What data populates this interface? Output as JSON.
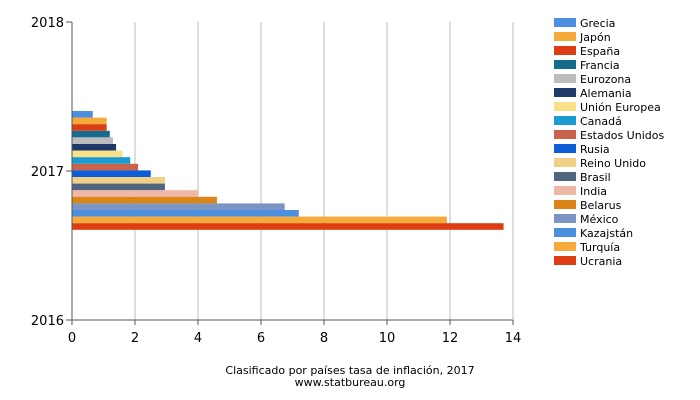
{
  "chart_data": {
    "type": "bar",
    "orientation": "horizontal",
    "title": "Clasificado por países tasa de inflación, 2017",
    "source": "www.statbureau.org",
    "xlabel": "",
    "ylabel": "",
    "xlim": [
      0,
      14
    ],
    "x_ticks": [
      "0",
      "2",
      "4",
      "6",
      "8",
      "10",
      "12",
      "14"
    ],
    "y_ticks": [
      "2018",
      "2017",
      "2016"
    ],
    "grid": true,
    "legend_position": "right",
    "category": "2017",
    "series": [
      {
        "name": "Grecia",
        "value": 0.66,
        "color": "#4a8fe0"
      },
      {
        "name": "Japón",
        "value": 1.1,
        "color": "#f5aa3a"
      },
      {
        "name": "España",
        "value": 1.1,
        "color": "#dc3d12"
      },
      {
        "name": "Francia",
        "value": 1.2,
        "color": "#176b8c"
      },
      {
        "name": "Eurozona",
        "value": 1.3,
        "color": "#bcbcbc"
      },
      {
        "name": "Alemania",
        "value": 1.4,
        "color": "#1f3a68"
      },
      {
        "name": "Unión Europea",
        "value": 1.6,
        "color": "#fbe08a"
      },
      {
        "name": "Canadá",
        "value": 1.85,
        "color": "#1a9cd2"
      },
      {
        "name": "Estados Unidos",
        "value": 2.1,
        "color": "#c9634c"
      },
      {
        "name": "Rusia",
        "value": 2.5,
        "color": "#0b5ed7"
      },
      {
        "name": "Reino Unido",
        "value": 2.95,
        "color": "#f2cf86"
      },
      {
        "name": "Brasil",
        "value": 2.95,
        "color": "#4f6580"
      },
      {
        "name": "India",
        "value": 4.0,
        "color": "#efb7a6"
      },
      {
        "name": "Belarus",
        "value": 4.6,
        "color": "#da8516"
      },
      {
        "name": "México",
        "value": 6.75,
        "color": "#7a95c4"
      },
      {
        "name": "Kazajstán",
        "value": 7.2,
        "color": "#4a8fe0"
      },
      {
        "name": "Turquía",
        "value": 11.9,
        "color": "#f5aa3a"
      },
      {
        "name": "Ucrania",
        "value": 13.7,
        "color": "#dc3d12"
      }
    ]
  }
}
